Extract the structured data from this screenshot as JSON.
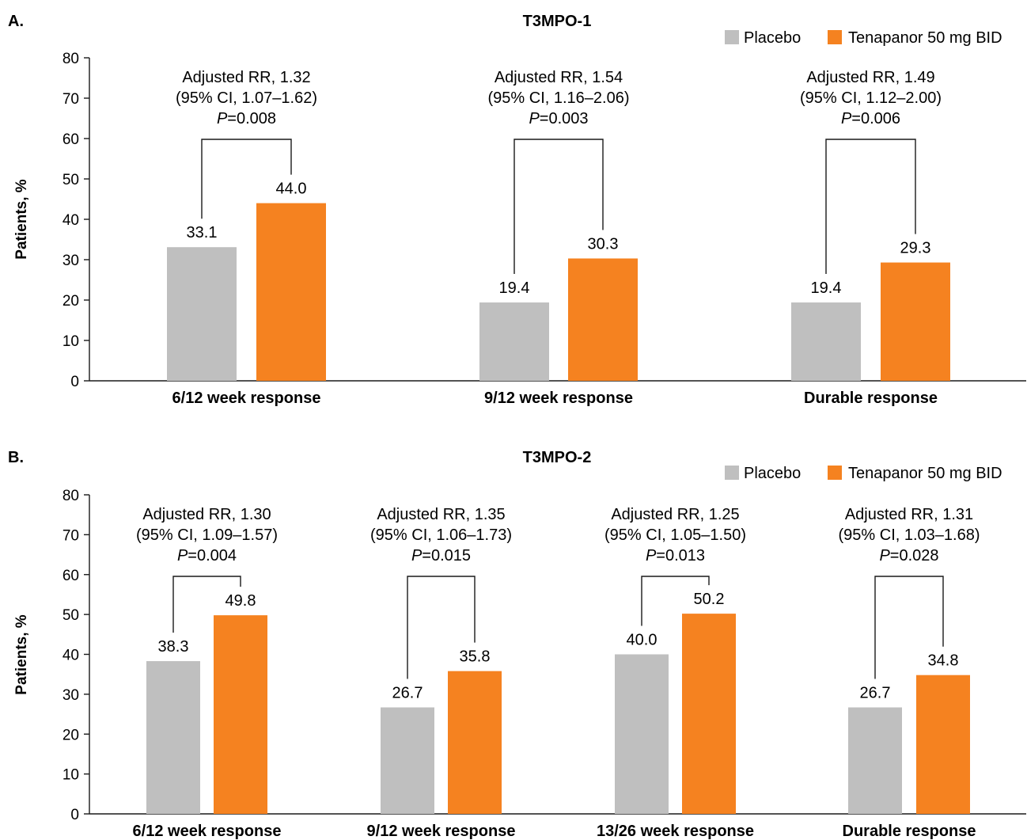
{
  "colors": {
    "placebo": "#BFBFBF",
    "tenapanor": "#F58220"
  },
  "chart_data": [
    {
      "type": "bar",
      "panel_letter": "A.",
      "title": "T3MPO-1",
      "ylabel": "Patients, %",
      "ylim": [
        0,
        80
      ],
      "yticks": [
        0,
        10,
        20,
        30,
        40,
        50,
        60,
        70,
        80
      ],
      "legend_position": "top-right",
      "categories": [
        "6/12 week response",
        "9/12 week response",
        "Durable response"
      ],
      "series": [
        {
          "name": "Placebo",
          "values": [
            33.1,
            19.4,
            19.4
          ],
          "labels": [
            "33.1",
            "19.4",
            "19.4"
          ]
        },
        {
          "name": "Tenapanor 50 mg BID",
          "values": [
            44.0,
            30.3,
            29.3
          ],
          "labels": [
            "44.0",
            "30.3",
            "29.3"
          ]
        }
      ],
      "annotations": [
        {
          "rr": "Adjusted RR, 1.32",
          "ci": "(95% CI, 1.07–1.62)",
          "p_prefix": "P",
          "p_value": "=0.008"
        },
        {
          "rr": "Adjusted RR, 1.54",
          "ci": "(95% CI, 1.16–2.06)",
          "p_prefix": "P",
          "p_value": "=0.003"
        },
        {
          "rr": "Adjusted RR, 1.49",
          "ci": "(95% CI, 1.12–2.00)",
          "p_prefix": "P",
          "p_value": "=0.006"
        }
      ]
    },
    {
      "type": "bar",
      "panel_letter": "B.",
      "title": "T3MPO-2",
      "ylabel": "Patients, %",
      "ylim": [
        0,
        80
      ],
      "yticks": [
        0,
        10,
        20,
        30,
        40,
        50,
        60,
        70,
        80
      ],
      "legend_position": "top-right",
      "categories": [
        "6/12 week response",
        "9/12 week response",
        "13/26 week response",
        "Durable response"
      ],
      "series": [
        {
          "name": "Placebo",
          "values": [
            38.3,
            26.7,
            40.0,
            26.7
          ],
          "labels": [
            "38.3",
            "26.7",
            "40.0",
            "26.7"
          ]
        },
        {
          "name": "Tenapanor 50 mg BID",
          "values": [
            49.8,
            35.8,
            50.2,
            34.8
          ],
          "labels": [
            "49.8",
            "35.8",
            "50.2",
            "34.8"
          ]
        }
      ],
      "annotations": [
        {
          "rr": "Adjusted RR, 1.30",
          "ci": "(95% CI, 1.09–1.57)",
          "p_prefix": "P",
          "p_value": "=0.004"
        },
        {
          "rr": "Adjusted RR, 1.35",
          "ci": "(95% CI, 1.06–1.73)",
          "p_prefix": "P",
          "p_value": "=0.015"
        },
        {
          "rr": "Adjusted RR, 1.25",
          "ci": "(95% CI, 1.05–1.50)",
          "p_prefix": "P",
          "p_value": "=0.013"
        },
        {
          "rr": "Adjusted RR, 1.31",
          "ci": "(95% CI, 1.03–1.68)",
          "p_prefix": "P",
          "p_value": "=0.028"
        }
      ]
    }
  ]
}
